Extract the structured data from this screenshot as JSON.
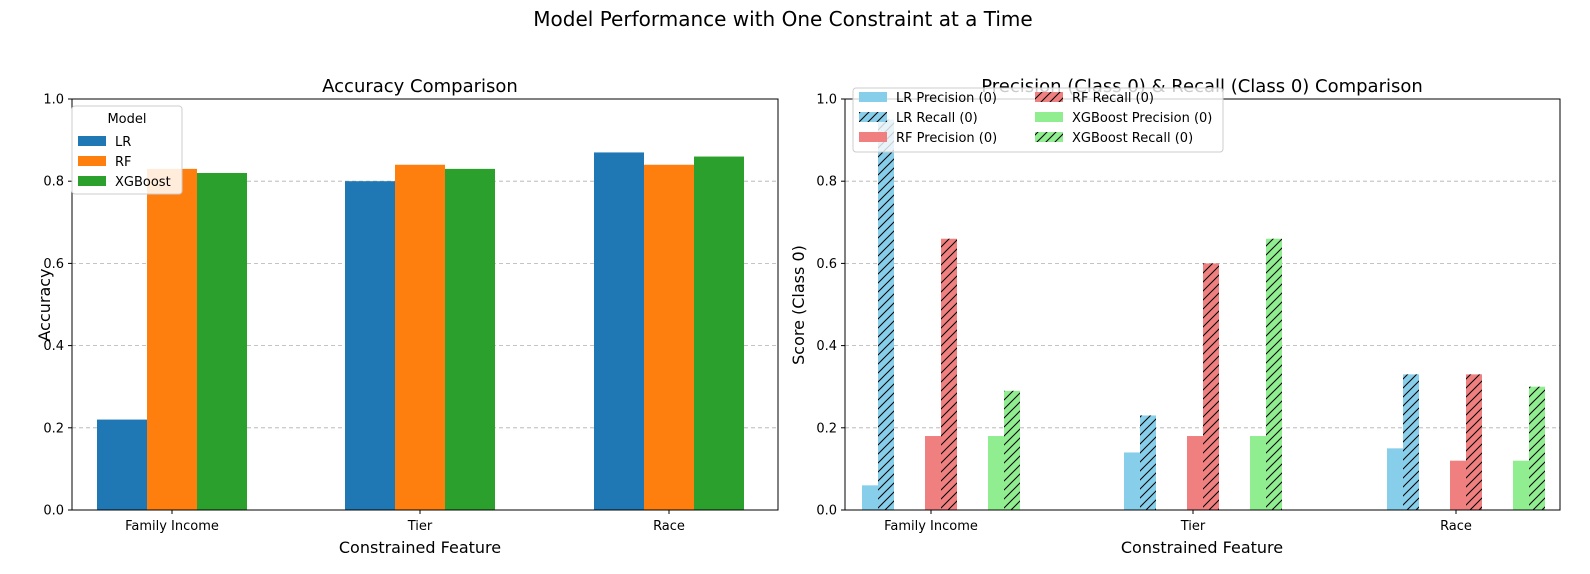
{
  "suptitle": "Model Performance with One Constraint at a Time",
  "chart_data": [
    {
      "type": "bar",
      "title": "Accuracy Comparison",
      "xlabel": "Constrained Feature",
      "ylabel": "Accuracy",
      "categories": [
        "Family Income",
        "Tier",
        "Race"
      ],
      "ylim": [
        0,
        1.0
      ],
      "yticks": [
        "0.0",
        "0.2",
        "0.4",
        "0.6",
        "0.8",
        "1.0"
      ],
      "grid": "y-dashed",
      "legend": {
        "title": "Model",
        "placement": "upper-left"
      },
      "series": [
        {
          "name": "LR",
          "color": "#1f77b4",
          "values": [
            0.22,
            0.8,
            0.87
          ]
        },
        {
          "name": "RF",
          "color": "#ff7f0e",
          "values": [
            0.83,
            0.84,
            0.84
          ]
        },
        {
          "name": "XGBoost",
          "color": "#2ca02c",
          "values": [
            0.82,
            0.83,
            0.86
          ]
        }
      ]
    },
    {
      "type": "bar",
      "title": "Precision (Class 0) & Recall (Class 0) Comparison",
      "xlabel": "Constrained Feature",
      "ylabel": "Score (Class 0)",
      "categories": [
        "Family Income",
        "Tier",
        "Race"
      ],
      "ylim": [
        0,
        1.0
      ],
      "yticks": [
        "0.0",
        "0.2",
        "0.4",
        "0.6",
        "0.8",
        "1.0"
      ],
      "grid": "y-dashed",
      "legend": {
        "placement": "upper-left",
        "columns": 2
      },
      "series": [
        {
          "name": "LR Precision (0)",
          "color": "#87ceeb",
          "hatch": false,
          "values": [
            0.06,
            0.14,
            0.15
          ]
        },
        {
          "name": "LR Recall (0)",
          "color": "#87ceeb",
          "hatch": true,
          "values": [
            0.95,
            0.23,
            0.33
          ]
        },
        {
          "name": "RF Precision (0)",
          "color": "#f08080",
          "hatch": false,
          "values": [
            0.18,
            0.18,
            0.12
          ]
        },
        {
          "name": "RF Recall (0)",
          "color": "#f08080",
          "hatch": true,
          "values": [
            0.66,
            0.6,
            0.33
          ]
        },
        {
          "name": "XGBoost Precision (0)",
          "color": "#90ee90",
          "hatch": false,
          "values": [
            0.18,
            0.18,
            0.12
          ]
        },
        {
          "name": "XGBoost Recall (0)",
          "color": "#90ee90",
          "hatch": true,
          "values": [
            0.29,
            0.66,
            0.3
          ]
        }
      ]
    }
  ]
}
